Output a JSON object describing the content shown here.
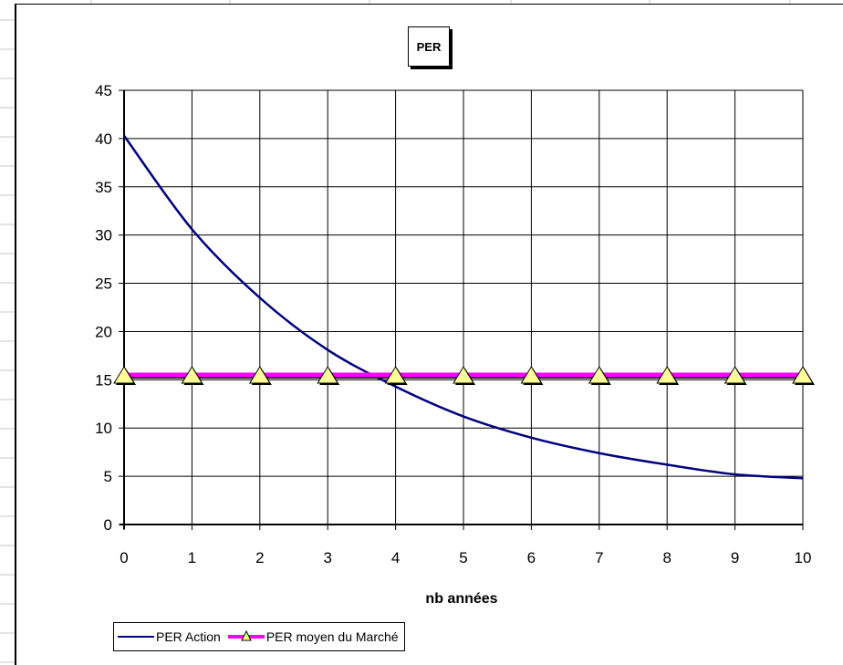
{
  "chart_data": {
    "type": "line",
    "title": "PER",
    "xlabel": "nb années",
    "ylabel": "",
    "x": [
      0,
      1,
      2,
      3,
      4,
      5,
      6,
      7,
      8,
      9,
      10
    ],
    "xlim": [
      0,
      10
    ],
    "ylim": [
      0,
      45
    ],
    "y_ticks": [
      0,
      5,
      10,
      15,
      20,
      25,
      30,
      35,
      40,
      45
    ],
    "x_ticks": [
      0,
      1,
      2,
      3,
      4,
      5,
      6,
      7,
      8,
      9,
      10
    ],
    "grid": true,
    "legend_position": "bottom-left",
    "series": [
      {
        "name": "PER Action",
        "values": [
          40.3,
          30.6,
          23.5,
          18.1,
          14.3,
          11.2,
          9.0,
          7.4,
          6.2,
          5.2,
          4.8
        ],
        "color": "#000080",
        "marker": "none"
      },
      {
        "name": "PER moyen du Marché",
        "values": [
          15.5,
          15.5,
          15.5,
          15.5,
          15.5,
          15.5,
          15.5,
          15.5,
          15.5,
          15.5,
          15.5
        ],
        "color": "#ff00ff",
        "marker": "triangle",
        "marker_color": "#ffff99"
      }
    ]
  }
}
